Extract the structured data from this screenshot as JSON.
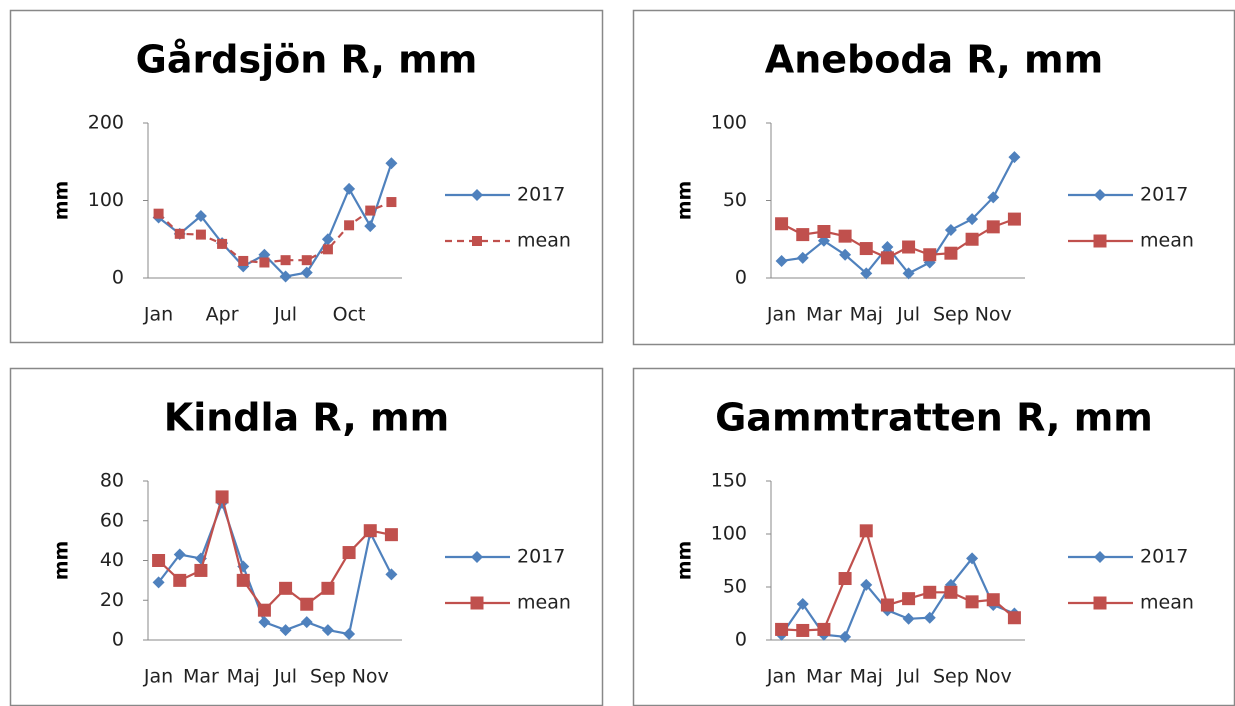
{
  "chart_data": [
    {
      "type": "line",
      "title": "Gårdsjön R, mm",
      "y_label": "mm",
      "categories": [
        "Jan",
        null,
        null,
        "Apr",
        null,
        null,
        "Jul",
        null,
        null,
        "Oct",
        null,
        null
      ],
      "ylim": [
        0,
        200
      ],
      "yticks": [
        0,
        100,
        200
      ],
      "series": [
        {
          "name": "2017",
          "color": "#4f81bd",
          "marker": "diamond",
          "linestyle": "solid",
          "values": [
            78,
            57,
            80,
            45,
            15,
            30,
            2,
            7,
            50,
            115,
            67,
            148
          ]
        },
        {
          "name": "mean",
          "color": "#c0504d",
          "marker": "square",
          "linestyle": "dashed",
          "values": [
            83,
            57,
            56,
            44,
            22,
            20,
            23,
            23,
            37,
            68,
            87,
            98
          ]
        }
      ]
    },
    {
      "type": "line",
      "title": "Aneboda R, mm",
      "y_label": "mm",
      "categories": [
        "Jan",
        null,
        "Mar",
        null,
        "Maj",
        null,
        "Jul",
        null,
        "Sep",
        null,
        "Nov",
        null
      ],
      "ylim": [
        0,
        100
      ],
      "yticks": [
        0,
        50,
        100
      ],
      "series": [
        {
          "name": "2017",
          "color": "#4f81bd",
          "marker": "diamond",
          "linestyle": "solid",
          "values": [
            11,
            13,
            24,
            15,
            3,
            20,
            3,
            10,
            31,
            38,
            52,
            78
          ]
        },
        {
          "name": "mean",
          "color": "#c0504d",
          "marker": "square",
          "linestyle": "solid",
          "values": [
            35,
            28,
            30,
            27,
            19,
            13,
            20,
            15,
            16,
            25,
            33,
            38
          ]
        }
      ]
    },
    {
      "type": "line",
      "title": "Kindla R, mm",
      "y_label": "mm",
      "categories": [
        "Jan",
        null,
        "Mar",
        null,
        "Maj",
        null,
        "Jul",
        null,
        "Sep",
        null,
        "Nov",
        null
      ],
      "ylim": [
        0,
        80
      ],
      "yticks": [
        0,
        20,
        40,
        60,
        80
      ],
      "series": [
        {
          "name": "2017",
          "color": "#4f81bd",
          "marker": "diamond",
          "linestyle": "solid",
          "values": [
            29,
            43,
            41,
            69,
            37,
            9,
            5,
            9,
            5,
            3,
            54,
            33
          ]
        },
        {
          "name": "mean",
          "color": "#c0504d",
          "marker": "square",
          "linestyle": "solid",
          "values": [
            40,
            30,
            35,
            72,
            30,
            15,
            26,
            18,
            26,
            44,
            55,
            53
          ]
        }
      ]
    },
    {
      "type": "line",
      "title": "Gammtratten R, mm",
      "y_label": "mm",
      "categories": [
        "Jan",
        null,
        "Mar",
        null,
        "Maj",
        null,
        "Jul",
        null,
        "Sep",
        null,
        "Nov",
        null
      ],
      "ylim": [
        0,
        150
      ],
      "yticks": [
        0,
        50,
        100,
        150
      ],
      "series": [
        {
          "name": "2017",
          "color": "#4f81bd",
          "marker": "diamond",
          "linestyle": "solid",
          "values": [
            5,
            34,
            5,
            3,
            52,
            28,
            20,
            21,
            52,
            77,
            33,
            25
          ]
        },
        {
          "name": "mean",
          "color": "#c0504d",
          "marker": "square",
          "linestyle": "solid",
          "values": [
            10,
            9,
            10,
            58,
            103,
            33,
            39,
            45,
            45,
            36,
            38,
            21
          ]
        }
      ]
    }
  ]
}
